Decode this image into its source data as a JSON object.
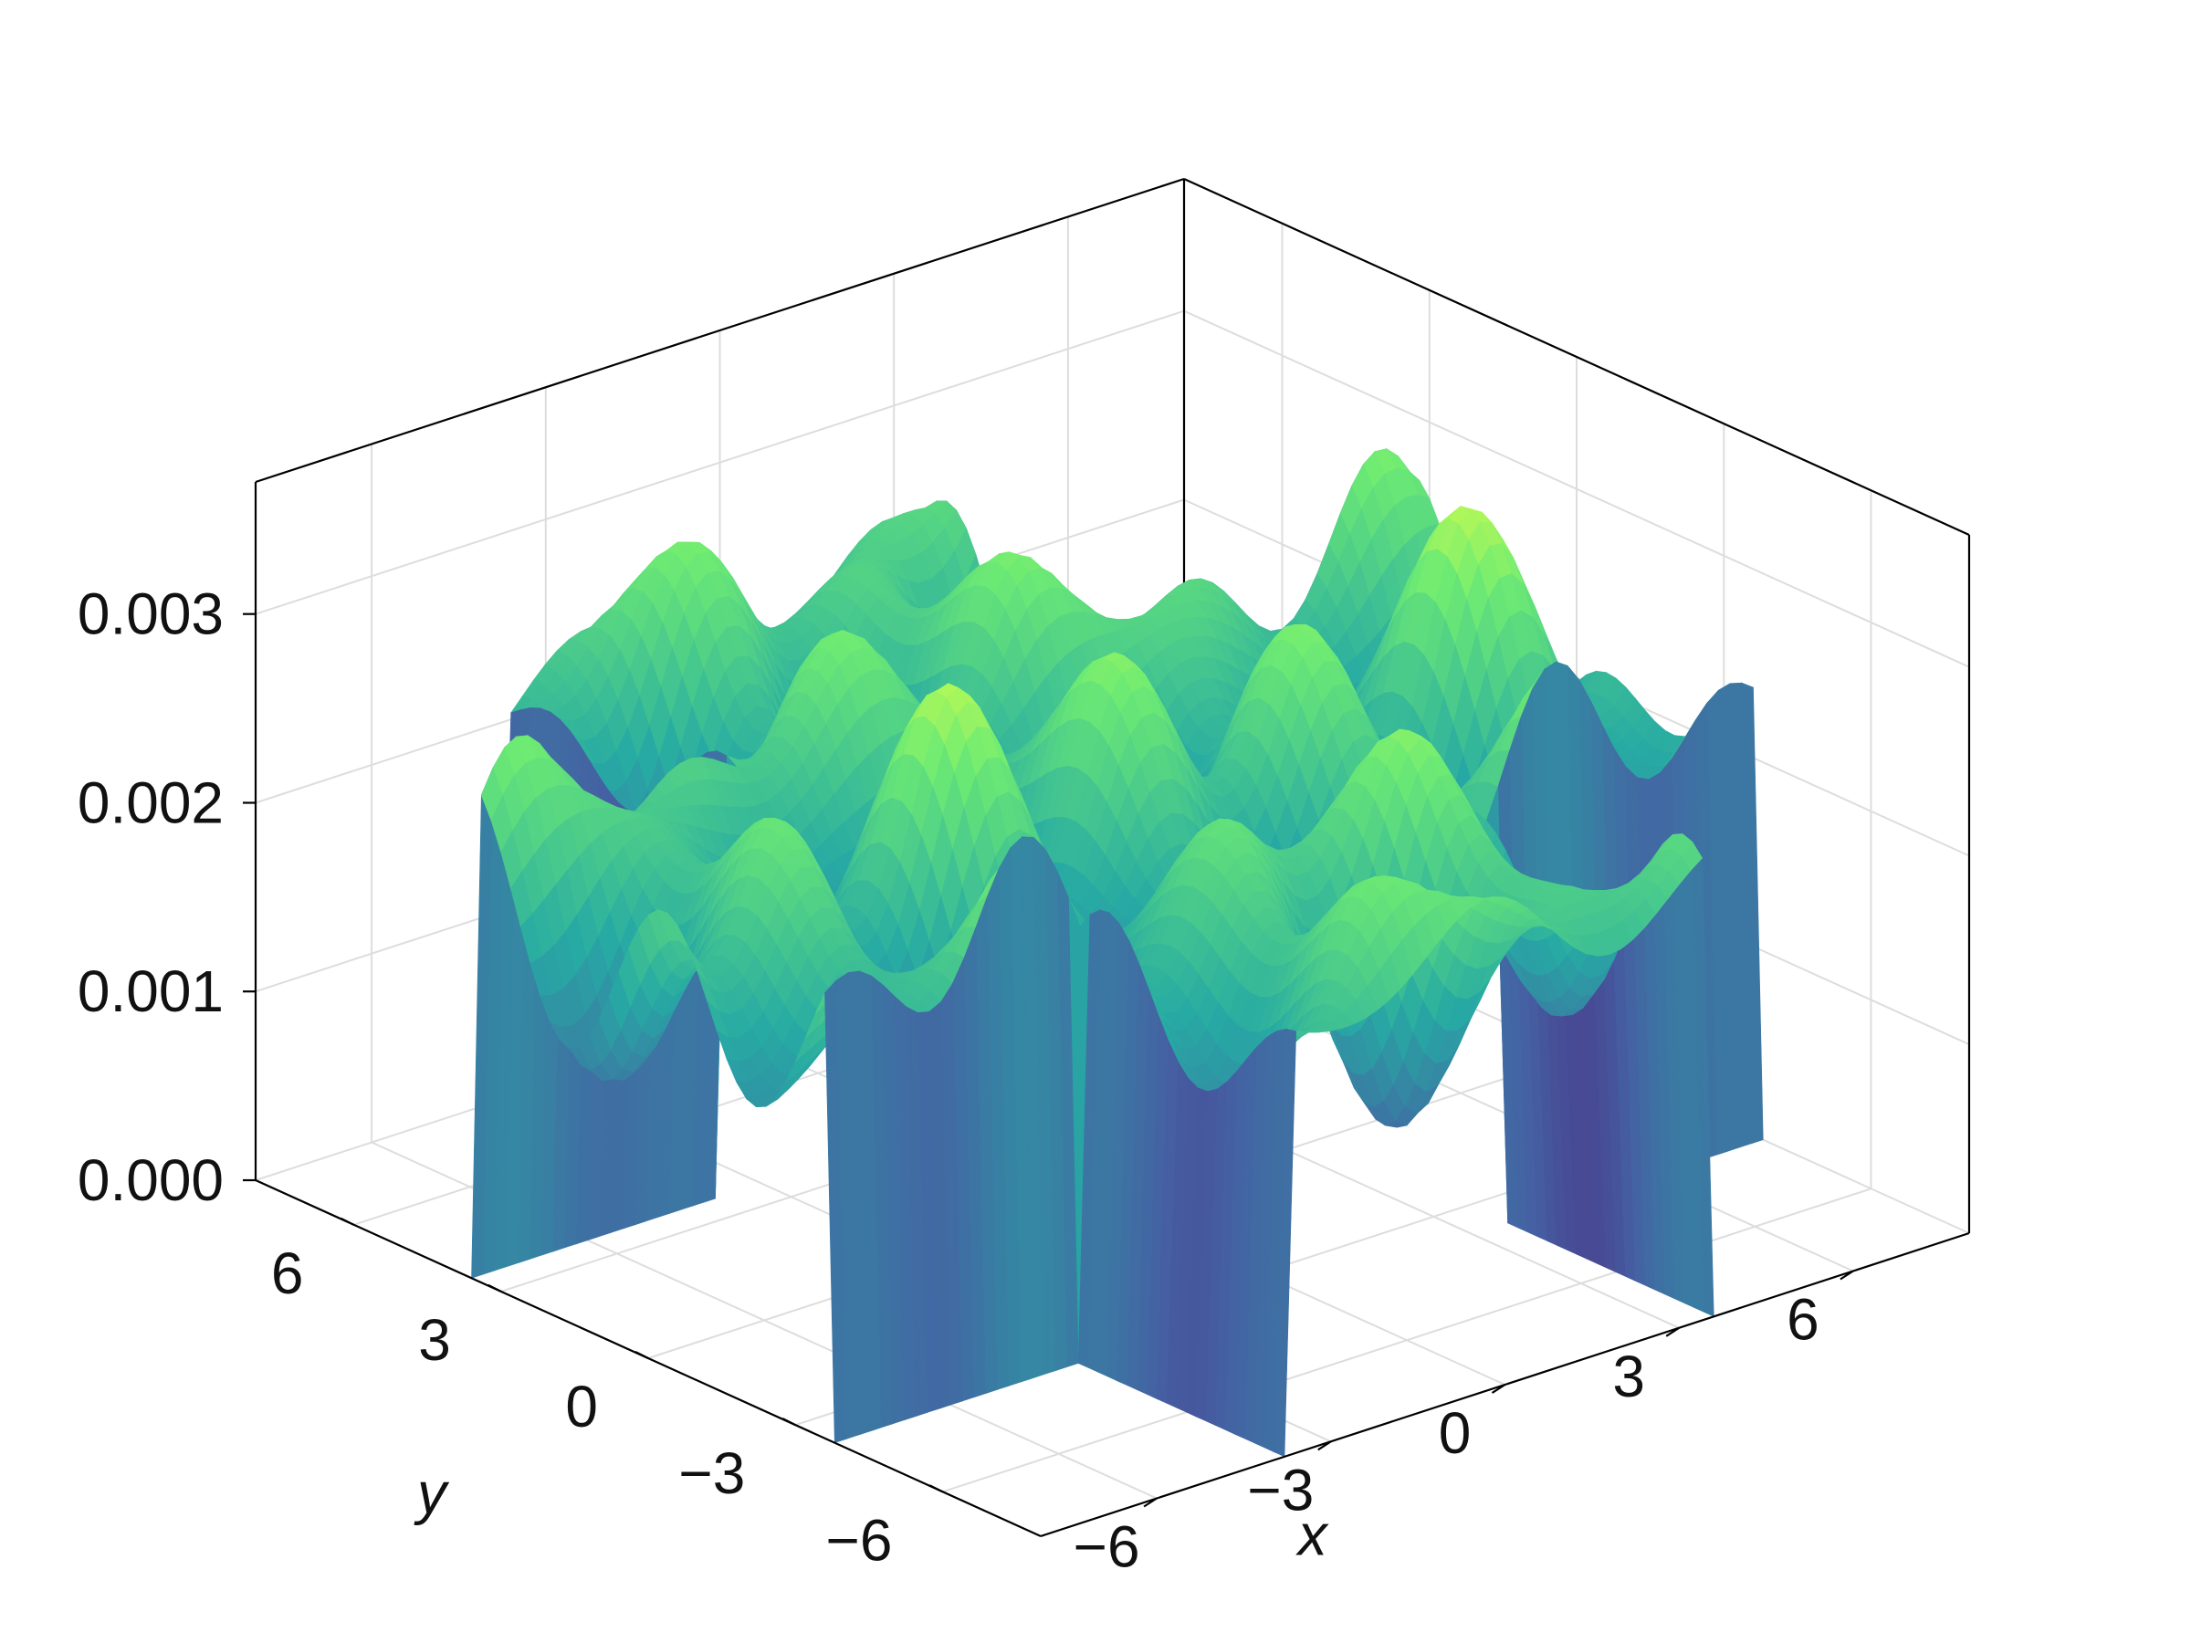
{
  "chart_data": {
    "type": "surface",
    "title": "",
    "xlabel": "x",
    "ylabel": "y",
    "zlabel": "",
    "xlim": [
      -8,
      8
    ],
    "ylim": [
      -8,
      8
    ],
    "zlim": [
      0,
      0.0037
    ],
    "x_ticks": [
      -6,
      -3,
      0,
      3,
      6
    ],
    "y_ticks": [
      -6,
      -3,
      0,
      3,
      6
    ],
    "z_ticks": [
      0.0,
      0.001,
      0.002,
      0.003
    ],
    "x_tick_labels": [
      "−6",
      "−3",
      "0",
      "3",
      "6"
    ],
    "y_tick_labels": [
      "−6",
      "−3",
      "0",
      "3",
      "6"
    ],
    "z_tick_labels": [
      "0.000",
      "0.001",
      "0.002",
      "0.003"
    ],
    "colormap": [
      "#440154",
      "#3b528b",
      "#21918c",
      "#5ec962",
      "#fde725"
    ],
    "grid": true,
    "surface": {
      "notes_shape": "cross-shaped footprint (square with corner regions removed), oscillating ridges of height ~0.002–0.0036 with steep walls down to 0",
      "footprint_corner_cut": 3.6,
      "base_level": 0.0021,
      "amplitude": 0.0009
    }
  }
}
